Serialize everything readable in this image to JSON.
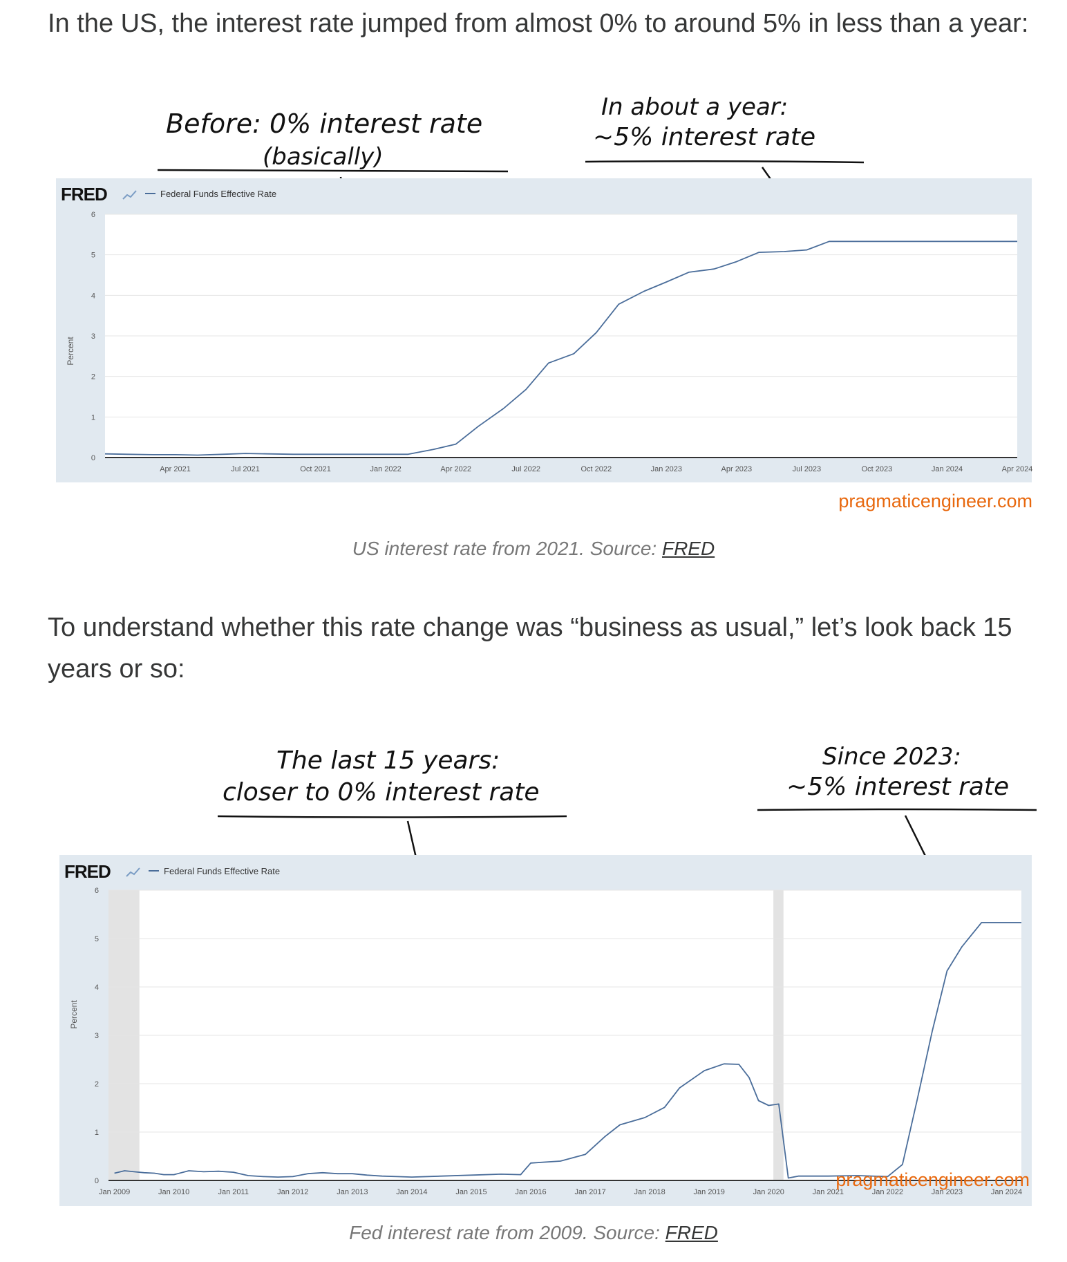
{
  "intro_text": "In the US, the interest rate jumped from almost 0% to around 5% in less than a year:",
  "middle_text": "To understand whether this rate change was “business as usual,” let’s look back 15 years or so:",
  "figure1": {
    "annotation_left_line1": "Before: 0% interest rate",
    "annotation_left_line2": "(basically)",
    "annotation_right_line1": "In about a year:",
    "annotation_right_line2": "~5% interest rate",
    "watermark": "pragmaticengineer.com",
    "caption_prefix": "US interest rate from 2021. Source: ",
    "caption_link": "FRED"
  },
  "figure2": {
    "annotation_left_line1": "The last 15 years:",
    "annotation_left_line2": "closer to 0% interest rate",
    "annotation_right_line1": "Since 2023:",
    "annotation_right_line2": "~5% interest rate",
    "watermark": "pragmaticengineer.com",
    "caption_prefix": "Fed interest rate from 2009. Source: ",
    "caption_link": "FRED"
  },
  "chart_data": [
    {
      "type": "line",
      "brand": "FRED",
      "legend": "Federal Funds Effective Rate",
      "ylabel": "Percent",
      "ylim": [
        0,
        6
      ],
      "yticks": [
        "0",
        "1",
        "2",
        "3",
        "4",
        "5",
        "6"
      ],
      "xlim": [
        2021.0,
        2024.25
      ],
      "x_tick_labels": [
        "Apr 2021",
        "Jul 2021",
        "Oct 2021",
        "Jan 2022",
        "Apr 2022",
        "Jul 2022",
        "Oct 2022",
        "Jan 2023",
        "Apr 2023",
        "Jul 2023",
        "Oct 2023",
        "Jan 2024",
        "Apr 2024"
      ],
      "x_tick_positions": [
        2021.25,
        2021.5,
        2021.75,
        2022.0,
        2022.25,
        2022.5,
        2022.75,
        2023.0,
        2023.25,
        2023.5,
        2023.75,
        2024.0,
        2024.25
      ],
      "grid": true,
      "series": [
        {
          "name": "Federal Funds Effective Rate",
          "color": "#4a6d9a",
          "x": [
            2021.0,
            2021.08,
            2021.17,
            2021.25,
            2021.33,
            2021.42,
            2021.5,
            2021.58,
            2021.67,
            2021.75,
            2021.83,
            2021.92,
            2022.0,
            2022.08,
            2022.17,
            2022.25,
            2022.33,
            2022.42,
            2022.5,
            2022.58,
            2022.67,
            2022.75,
            2022.83,
            2022.92,
            2023.0,
            2023.08,
            2023.17,
            2023.25,
            2023.33,
            2023.42,
            2023.5,
            2023.58,
            2023.67,
            2023.75,
            2023.83,
            2023.92,
            2024.0,
            2024.08,
            2024.17,
            2024.25
          ],
          "y": [
            0.09,
            0.08,
            0.07,
            0.07,
            0.06,
            0.08,
            0.1,
            0.09,
            0.08,
            0.08,
            0.08,
            0.08,
            0.08,
            0.08,
            0.2,
            0.33,
            0.77,
            1.21,
            1.68,
            2.33,
            2.56,
            3.08,
            3.78,
            4.1,
            4.33,
            4.57,
            4.65,
            4.83,
            5.06,
            5.08,
            5.12,
            5.33,
            5.33,
            5.33,
            5.33,
            5.33,
            5.33,
            5.33,
            5.33,
            5.33
          ]
        }
      ]
    },
    {
      "type": "line",
      "brand": "FRED",
      "legend": "Federal Funds Effective Rate",
      "ylabel": "Percent",
      "ylim": [
        0,
        6
      ],
      "yticks": [
        "0",
        "1",
        "2",
        "3",
        "4",
        "5",
        "6"
      ],
      "xlim": [
        2008.9,
        2024.25
      ],
      "x_tick_labels": [
        "Jan 2009",
        "Jan 2010",
        "Jan 2011",
        "Jan 2012",
        "Jan 2013",
        "Jan 2014",
        "Jan 2015",
        "Jan 2016",
        "Jan 2017",
        "Jan 2018",
        "Jan 2019",
        "Jan 2020",
        "Jan 2021",
        "Jan 2022",
        "Jan 2023",
        "Jan 2024"
      ],
      "x_tick_positions": [
        2009,
        2010,
        2011,
        2012,
        2013,
        2014,
        2015,
        2016,
        2017,
        2018,
        2019,
        2020,
        2021,
        2022,
        2023,
        2024
      ],
      "recessions": [
        [
          2008.9,
          2009.42
        ],
        [
          2020.08,
          2020.25
        ]
      ],
      "grid": true,
      "series": [
        {
          "name": "Federal Funds Effective Rate",
          "color": "#4a6d9a",
          "x": [
            2009.0,
            2009.17,
            2009.33,
            2009.5,
            2009.67,
            2009.83,
            2010.0,
            2010.25,
            2010.5,
            2010.75,
            2011.0,
            2011.25,
            2011.5,
            2011.75,
            2012.0,
            2012.25,
            2012.5,
            2012.75,
            2013.0,
            2013.25,
            2013.5,
            2013.75,
            2014.0,
            2014.5,
            2015.0,
            2015.5,
            2015.83,
            2016.0,
            2016.5,
            2016.92,
            2017.25,
            2017.5,
            2017.92,
            2018.25,
            2018.5,
            2018.92,
            2019.25,
            2019.5,
            2019.67,
            2019.83,
            2020.0,
            2020.17,
            2020.33,
            2020.5,
            2021.0,
            2021.5,
            2022.0,
            2022.25,
            2022.5,
            2022.75,
            2023.0,
            2023.25,
            2023.58,
            2024.0,
            2024.25
          ],
          "y": [
            0.15,
            0.2,
            0.18,
            0.16,
            0.15,
            0.12,
            0.12,
            0.2,
            0.18,
            0.19,
            0.17,
            0.1,
            0.08,
            0.07,
            0.08,
            0.14,
            0.16,
            0.14,
            0.14,
            0.11,
            0.09,
            0.08,
            0.07,
            0.09,
            0.11,
            0.13,
            0.12,
            0.36,
            0.4,
            0.54,
            0.91,
            1.15,
            1.3,
            1.51,
            1.91,
            2.27,
            2.41,
            2.4,
            2.13,
            1.65,
            1.55,
            1.58,
            0.05,
            0.09,
            0.09,
            0.1,
            0.08,
            0.33,
            1.68,
            3.08,
            4.33,
            4.83,
            5.33,
            5.33,
            5.33
          ]
        }
      ]
    }
  ]
}
